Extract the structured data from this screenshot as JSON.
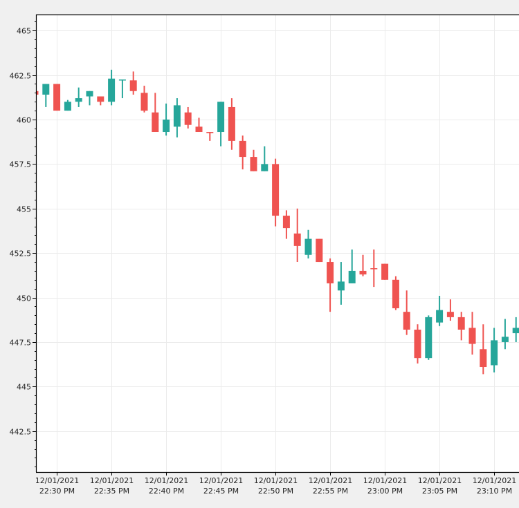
{
  "chart_data": {
    "type": "candlestick",
    "title": "",
    "xlabel": "",
    "ylabel": "",
    "ylim": [
      440.2,
      465.9
    ],
    "grid": true,
    "legend": null,
    "y_ticks": [
      "465",
      "462.5",
      "460",
      "457.5",
      "455",
      "452.5",
      "450",
      "447.5",
      "445",
      "442.5"
    ],
    "y_tick_values": [
      465,
      462.5,
      460,
      457.5,
      455,
      452.5,
      450,
      447.5,
      445,
      442.5
    ],
    "x_ticks": [
      {
        "date": "12/01/2021",
        "time": "22:30 PM",
        "minute": 2
      },
      {
        "date": "12/01/2021",
        "time": "22:35 PM",
        "minute": 7
      },
      {
        "date": "12/01/2021",
        "time": "22:40 PM",
        "minute": 12
      },
      {
        "date": "12/01/2021",
        "time": "22:45 PM",
        "minute": 17
      },
      {
        "date": "12/01/2021",
        "time": "22:50 PM",
        "minute": 22
      },
      {
        "date": "12/01/2021",
        "time": "22:55 PM",
        "minute": 27
      },
      {
        "date": "12/01/2021",
        "time": "23:00 PM",
        "minute": 32
      },
      {
        "date": "12/01/2021",
        "time": "23:05 PM",
        "minute": 37
      },
      {
        "date": "12/01/2021",
        "time": "23:10 PM",
        "minute": 42
      }
    ],
    "colors": {
      "up": "#26a69a",
      "down": "#ef5350",
      "grid": "#ebebeb",
      "axis": "#000000",
      "plot_bg": "#ffffff",
      "page_bg": "#f0f0f0"
    },
    "candles": [
      {
        "t": "22:28",
        "o": 461.6,
        "h": 461.6,
        "l": 461.4,
        "c": 461.4
      },
      {
        "t": "22:29",
        "o": 461.4,
        "h": 462.0,
        "l": 460.7,
        "c": 462.0
      },
      {
        "t": "22:30",
        "o": 462.0,
        "h": 462.0,
        "l": 460.5,
        "c": 460.5
      },
      {
        "t": "22:31",
        "o": 460.5,
        "h": 461.1,
        "l": 460.5,
        "c": 461.0
      },
      {
        "t": "22:32",
        "o": 461.0,
        "h": 461.8,
        "l": 460.7,
        "c": 461.2
      },
      {
        "t": "22:33",
        "o": 461.3,
        "h": 461.6,
        "l": 460.8,
        "c": 461.6
      },
      {
        "t": "22:34",
        "o": 461.3,
        "h": 461.3,
        "l": 460.8,
        "c": 461.0
      },
      {
        "t": "22:35",
        "o": 461.0,
        "h": 462.8,
        "l": 460.8,
        "c": 462.3
      },
      {
        "t": "22:36",
        "o": 462.2,
        "h": 462.25,
        "l": 461.2,
        "c": 462.25
      },
      {
        "t": "22:37",
        "o": 462.2,
        "h": 462.7,
        "l": 461.4,
        "c": 461.6
      },
      {
        "t": "22:38",
        "o": 461.5,
        "h": 461.9,
        "l": 460.4,
        "c": 460.5
      },
      {
        "t": "22:39",
        "o": 460.4,
        "h": 461.5,
        "l": 459.3,
        "c": 459.3
      },
      {
        "t": "22:40",
        "o": 459.3,
        "h": 460.9,
        "l": 459.1,
        "c": 460.0
      },
      {
        "t": "22:41",
        "o": 459.6,
        "h": 461.2,
        "l": 459.0,
        "c": 460.8
      },
      {
        "t": "22:42",
        "o": 460.4,
        "h": 460.7,
        "l": 459.5,
        "c": 459.7
      },
      {
        "t": "22:43",
        "o": 459.6,
        "h": 460.1,
        "l": 459.3,
        "c": 459.3
      },
      {
        "t": "22:44",
        "o": 459.3,
        "h": 459.3,
        "l": 458.8,
        "c": 459.25
      },
      {
        "t": "22:45",
        "o": 459.3,
        "h": 461.0,
        "l": 458.5,
        "c": 461.0
      },
      {
        "t": "22:46",
        "o": 460.7,
        "h": 461.2,
        "l": 458.3,
        "c": 458.8
      },
      {
        "t": "22:47",
        "o": 458.8,
        "h": 459.1,
        "l": 457.2,
        "c": 457.9
      },
      {
        "t": "22:48",
        "o": 457.9,
        "h": 458.3,
        "l": 457.1,
        "c": 457.1
      },
      {
        "t": "22:49",
        "o": 457.1,
        "h": 458.5,
        "l": 457.1,
        "c": 457.5
      },
      {
        "t": "22:50",
        "o": 457.5,
        "h": 457.8,
        "l": 454.0,
        "c": 454.6
      },
      {
        "t": "22:51",
        "o": 454.6,
        "h": 454.9,
        "l": 453.3,
        "c": 453.9
      },
      {
        "t": "22:52",
        "o": 453.6,
        "h": 455.0,
        "l": 452.0,
        "c": 452.9
      },
      {
        "t": "22:53",
        "o": 452.4,
        "h": 453.8,
        "l": 452.2,
        "c": 453.3
      },
      {
        "t": "22:54",
        "o": 453.3,
        "h": 453.3,
        "l": 452.0,
        "c": 452.0
      },
      {
        "t": "22:55",
        "o": 452.0,
        "h": 452.2,
        "l": 449.2,
        "c": 450.8
      },
      {
        "t": "22:56",
        "o": 450.4,
        "h": 452.0,
        "l": 449.6,
        "c": 450.9
      },
      {
        "t": "22:57",
        "o": 450.8,
        "h": 452.7,
        "l": 450.8,
        "c": 451.5
      },
      {
        "t": "22:58",
        "o": 451.5,
        "h": 452.4,
        "l": 451.2,
        "c": 451.3
      },
      {
        "t": "22:59",
        "o": 451.65,
        "h": 452.7,
        "l": 450.6,
        "c": 451.6
      },
      {
        "t": "23:00",
        "o": 451.9,
        "h": 451.9,
        "l": 451.0,
        "c": 451.0
      },
      {
        "t": "23:01",
        "o": 451.0,
        "h": 451.2,
        "l": 449.3,
        "c": 449.4
      },
      {
        "t": "23:02",
        "o": 449.2,
        "h": 450.4,
        "l": 447.9,
        "c": 448.2
      },
      {
        "t": "23:03",
        "o": 448.2,
        "h": 448.5,
        "l": 446.3,
        "c": 446.6
      },
      {
        "t": "23:04",
        "o": 446.6,
        "h": 449.0,
        "l": 446.5,
        "c": 448.9
      },
      {
        "t": "23:05",
        "o": 448.6,
        "h": 450.1,
        "l": 448.4,
        "c": 449.3
      },
      {
        "t": "23:06",
        "o": 449.2,
        "h": 449.9,
        "l": 448.7,
        "c": 448.9
      },
      {
        "t": "23:07",
        "o": 448.9,
        "h": 449.2,
        "l": 447.6,
        "c": 448.2
      },
      {
        "t": "23:08",
        "o": 448.3,
        "h": 449.2,
        "l": 446.8,
        "c": 447.4
      },
      {
        "t": "23:09",
        "o": 447.1,
        "h": 448.5,
        "l": 445.7,
        "c": 446.1
      },
      {
        "t": "23:10",
        "o": 446.2,
        "h": 448.3,
        "l": 445.8,
        "c": 447.6
      },
      {
        "t": "23:11",
        "o": 447.5,
        "h": 448.8,
        "l": 447.1,
        "c": 447.8
      },
      {
        "t": "23:12",
        "o": 448.0,
        "h": 448.9,
        "l": 447.5,
        "c": 448.3
      }
    ]
  }
}
